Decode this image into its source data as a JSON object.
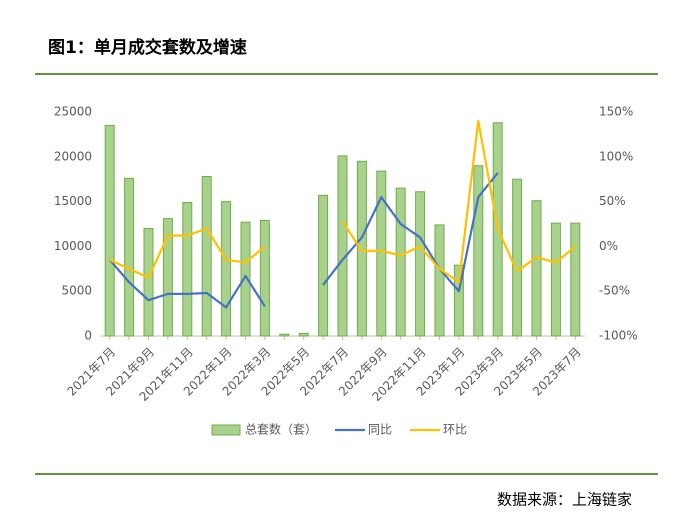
{
  "chart_data": {
    "type": "bar",
    "title": "图1：单月成交套数及增速",
    "source": "数据来源：上海链家",
    "categories": [
      "2021年7月",
      null,
      "2021年9月",
      null,
      "2021年11月",
      null,
      "2022年1月",
      null,
      "2022年3月",
      null,
      "2022年5月",
      null,
      "2022年7月",
      null,
      "2022年9月",
      null,
      "2022年11月",
      null,
      "2023年1月",
      null,
      "2023年3月",
      null,
      "2023年5月",
      null,
      "2023年7月"
    ],
    "series": [
      {
        "name": "总套数（套）",
        "type": "bar",
        "color": "#a9d18e",
        "values": [
          23500,
          17600,
          12000,
          13100,
          14900,
          17800,
          15000,
          12700,
          12900,
          200,
          300,
          15700,
          20100,
          19500,
          18400,
          16500,
          16100,
          12400,
          7900,
          19000,
          23800,
          17500,
          15100,
          12600,
          12600
        ]
      },
      {
        "name": "同比",
        "type": "line",
        "axis": "y2",
        "color": "#4472c4",
        "values": [
          -15,
          -40,
          -60,
          -53,
          -53,
          -52,
          -68,
          -33,
          -67,
          null,
          null,
          -43,
          -15,
          10,
          55,
          25,
          10,
          -25,
          -50,
          55,
          82,
          null,
          null,
          null,
          null
        ]
      },
      {
        "name": "环比",
        "type": "line",
        "axis": "y2",
        "color": "#ffc000",
        "values": [
          -15,
          -25,
          -35,
          12,
          12,
          20,
          -15,
          -18,
          0,
          null,
          null,
          null,
          28,
          -5,
          -5,
          -10,
          0,
          -25,
          -40,
          140,
          20,
          -28,
          -12,
          -18,
          0
        ]
      }
    ],
    "ylim": [
      0,
      25000
    ],
    "yticks": [
      0,
      5000,
      10000,
      15000,
      20000,
      25000
    ],
    "y2lim": [
      -100,
      150
    ],
    "y2ticks": [
      {
        "value": -100,
        "label": "-100%"
      },
      {
        "value": -50,
        "label": "-50%"
      },
      {
        "value": 0,
        "label": "0%"
      },
      {
        "value": 50,
        "label": "50%"
      },
      {
        "value": 100,
        "label": "100%"
      },
      {
        "value": 150,
        "label": "150%"
      }
    ],
    "grid": false,
    "legend": "bottom"
  }
}
